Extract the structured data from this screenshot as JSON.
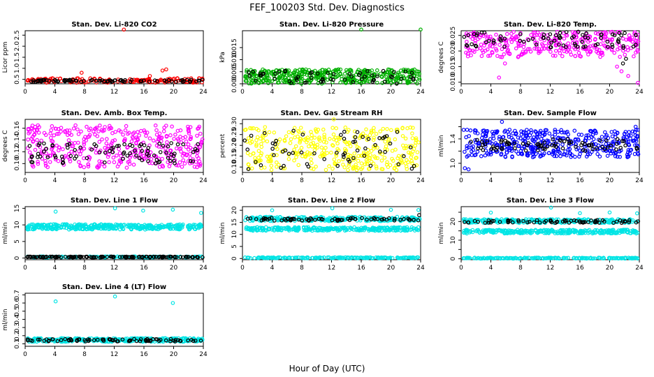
{
  "figure": {
    "title": "FEF_100203  Std. Dev. Diagnostics",
    "xlabel": "Hour of Day (UTC)"
  },
  "chart_data": [
    {
      "type": "scatter",
      "title": "Stan. Dev. Li-820 CO2",
      "ylabel": "Licor ppm",
      "xlim": [
        0,
        24
      ],
      "xticks": [
        0,
        4,
        8,
        12,
        16,
        20,
        24
      ],
      "ylim": [
        0.3,
        2.7
      ],
      "yticks": [
        0.5,
        1.0,
        1.5,
        2.0,
        2.5
      ],
      "ytick_labels": [
        "0.5",
        "1.0",
        "1.5",
        "2.0",
        "2.5"
      ],
      "series": [
        {
          "color": "#ff0000",
          "band": [
            0.35,
            0.55
          ],
          "n": 150,
          "outliers": [
            [
              13.3,
              2.75
            ],
            [
              7.6,
              0.8
            ],
            [
              16.8,
              0.65
            ],
            [
              19.0,
              0.95
            ],
            [
              18.5,
              0.9
            ],
            [
              20.5,
              0.55
            ]
          ]
        },
        {
          "color": "#000000",
          "band": [
            0.38,
            0.48
          ],
          "n": 90,
          "outliers": []
        }
      ]
    },
    {
      "type": "scatter",
      "title": "Stan. Dev. Li-820 Pressure",
      "ylabel": "kPa",
      "xlim": [
        0,
        24
      ],
      "xticks": [
        0,
        4,
        8,
        12,
        16,
        20,
        24
      ],
      "ylim": [
        0,
        0.022
      ],
      "yticks": [
        0,
        0.005,
        0.01,
        0.015
      ],
      "ytick_labels": [
        "0.000",
        "0.005",
        "0.010",
        "0.015"
      ],
      "series": [
        {
          "color": "#00b000",
          "band": [
            0.0,
            0.006
          ],
          "n": 420,
          "outliers": [
            [
              16.0,
              0.0225
            ],
            [
              24.0,
              0.0225
            ]
          ]
        },
        {
          "color": "#000000",
          "band": [
            0.0,
            0.0055
          ],
          "n": 60,
          "outliers": []
        }
      ]
    },
    {
      "type": "scatter",
      "title": "Stan. Dev. Li-820 Temp.",
      "ylabel": "degrees C",
      "xlim": [
        0,
        24
      ],
      "xticks": [
        0,
        4,
        8,
        12,
        16,
        20,
        24
      ],
      "ylim": [
        0.0095,
        0.0265
      ],
      "yticks": [
        0.01,
        0.015,
        0.02,
        0.025
      ],
      "ytick_labels": [
        "0.010",
        "0.015",
        "0.020",
        "0.025"
      ],
      "series": [
        {
          "color": "#ff00ff",
          "band": [
            0.018,
            0.0262
          ],
          "n": 320,
          "outliers": [
            [
              5.1,
              0.0115
            ],
            [
              23.8,
              0.0098
            ],
            [
              22.5,
              0.012
            ],
            [
              21.6,
              0.0135
            ],
            [
              5.9,
              0.016
            ],
            [
              21.0,
              0.015
            ]
          ]
        },
        {
          "color": "#000000",
          "band": [
            0.021,
            0.0262
          ],
          "n": 80,
          "outliers": [
            [
              22.2,
              0.0175
            ],
            [
              21.8,
              0.016
            ],
            [
              23.5,
              0.022
            ]
          ]
        }
      ]
    },
    {
      "type": "scatter",
      "title": "Stan. Dev. Amb. Box Temp.",
      "ylabel": "degrees C",
      "xlim": [
        0,
        24
      ],
      "xticks": [
        0,
        4,
        8,
        12,
        16,
        20,
        24
      ],
      "ylim": [
        0.085,
        0.175
      ],
      "yticks": [
        0.1,
        0.12,
        0.14,
        0.16
      ],
      "ytick_labels": [
        "0.10",
        "0.12",
        "0.14",
        "0.16"
      ],
      "series": [
        {
          "color": "#ff00ff",
          "band": [
            0.093,
            0.165
          ],
          "n": 380,
          "outliers": []
        },
        {
          "color": "#000000",
          "band": [
            0.1,
            0.135
          ],
          "n": 90,
          "outliers": []
        }
      ]
    },
    {
      "type": "scatter",
      "title": "Stan. Dev. Gas Stream RH",
      "ylabel": "percent",
      "xlim": [
        0,
        24
      ],
      "xticks": [
        0,
        4,
        8,
        12,
        16,
        20,
        24
      ],
      "ylim": [
        0.075,
        0.32
      ],
      "yticks": [
        0.1,
        0.15,
        0.2,
        0.25,
        0.3
      ],
      "ytick_labels": [
        "0.10",
        "0.15",
        "0.20",
        "0.25",
        "0.30"
      ],
      "series": [
        {
          "color": "#ffff00",
          "band": [
            0.085,
            0.285
          ],
          "n": 360,
          "outliers": [
            [
              12.3,
              0.32
            ]
          ]
        },
        {
          "color": "#000000",
          "band": [
            0.09,
            0.27
          ],
          "n": 60,
          "outliers": []
        }
      ]
    },
    {
      "type": "scatter",
      "title": "Stan. Dev. Sample Flow",
      "ylabel": "ml/min",
      "xlim": [
        0,
        24
      ],
      "xticks": [
        0,
        4,
        8,
        12,
        16,
        20,
        24
      ],
      "ylim": [
        0.85,
        1.72
      ],
      "yticks": [
        1.0,
        1.2,
        1.4,
        1.6
      ],
      "ytick_labels": [
        "1.0",
        "",
        "1.4",
        ""
      ],
      "series": [
        {
          "color": "#0000ff",
          "band": [
            1.1,
            1.55
          ],
          "n": 420,
          "outliers": [
            [
              0.5,
              0.92
            ],
            [
              1.0,
              0.9
            ],
            [
              5.5,
              1.68
            ],
            [
              23.5,
              1.6
            ]
          ]
        },
        {
          "color": "#000000",
          "band": [
            1.2,
            1.4
          ],
          "n": 80,
          "outliers": []
        }
      ]
    },
    {
      "type": "scatter",
      "title": "Stan. Dev. Line 1 Flow",
      "ylabel": "ml/min",
      "xlim": [
        0,
        24
      ],
      "xticks": [
        0,
        4,
        8,
        12,
        16,
        20,
        24
      ],
      "ylim": [
        -0.5,
        15.5
      ],
      "yticks": [
        0,
        5,
        10,
        15
      ],
      "ytick_labels": [
        "0",
        "5",
        "10",
        "15"
      ],
      "series": [
        {
          "color": "#00e5e5",
          "band": [
            8.6,
            10.2
          ],
          "n": 380,
          "outliers": [
            [
              4.1,
              14.0
            ],
            [
              12.1,
              15.0
            ],
            [
              19.9,
              14.6
            ],
            [
              23.7,
              13.6
            ],
            [
              15.9,
              14.3
            ]
          ]
        },
        {
          "color": "#00e5e5",
          "band": [
            0.15,
            0.5
          ],
          "n": 150,
          "outliers": []
        },
        {
          "color": "#000000",
          "band": [
            0.2,
            0.45
          ],
          "n": 140,
          "outliers": []
        }
      ]
    },
    {
      "type": "scatter",
      "title": "Stan. Dev. Line 2 Flow",
      "ylabel": "ml/min",
      "xlim": [
        0,
        24
      ],
      "xticks": [
        0,
        4,
        8,
        12,
        16,
        20,
        24
      ],
      "ylim": [
        -0.5,
        21.5
      ],
      "yticks": [
        0,
        5,
        10,
        15,
        20
      ],
      "ytick_labels": [
        "0",
        "5",
        "10",
        "15",
        "20"
      ],
      "series": [
        {
          "color": "#00e5e5",
          "band": [
            11.5,
            13.0
          ],
          "n": 280,
          "outliers": []
        },
        {
          "color": "#00e5e5",
          "band": [
            15.5,
            17.3
          ],
          "n": 260,
          "outliers": [
            [
              4.0,
              20.0
            ],
            [
              12.1,
              20.8
            ],
            [
              20.0,
              20.2
            ],
            [
              23.7,
              20.1
            ]
          ]
        },
        {
          "color": "#00e5e5",
          "band": [
            0.1,
            0.5
          ],
          "n": 180,
          "outliers": []
        },
        {
          "color": "#000000",
          "band": [
            15.6,
            16.9
          ],
          "n": 70,
          "outliers": [
            [
              23.8,
              18.0
            ]
          ]
        }
      ]
    },
    {
      "type": "scatter",
      "title": "Stan. Dev. Line 3 Flow",
      "ylabel": "ml/min",
      "xlim": [
        0,
        24
      ],
      "xticks": [
        0,
        4,
        8,
        12,
        16,
        20,
        24
      ],
      "ylim": [
        -0.5,
        28
      ],
      "yticks": [
        0,
        5,
        10,
        15,
        20,
        25
      ],
      "ytick_labels": [
        "0",
        "",
        "10",
        "",
        "20",
        ""
      ],
      "series": [
        {
          "color": "#00e5e5",
          "band": [
            13.6,
            15.6
          ],
          "n": 280,
          "outliers": []
        },
        {
          "color": "#00e5e5",
          "band": [
            19.2,
            21.3
          ],
          "n": 240,
          "outliers": [
            [
              4.0,
              24.8
            ],
            [
              12.1,
              27.5
            ],
            [
              16.0,
              24.5
            ],
            [
              20.0,
              24.9
            ],
            [
              23.7,
              24.4
            ]
          ]
        },
        {
          "color": "#00e5e5",
          "band": [
            0.1,
            0.6
          ],
          "n": 180,
          "outliers": []
        },
        {
          "color": "#000000",
          "band": [
            19.2,
            20.8
          ],
          "n": 70,
          "outliers": []
        }
      ]
    },
    {
      "type": "scatter",
      "title": "Stan. Dev. Line 4 (LT) Flow",
      "ylabel": "ml/min",
      "xlim": [
        0,
        24
      ],
      "xticks": [
        0,
        4,
        8,
        12,
        16,
        20,
        24
      ],
      "ylim": [
        0.07,
        0.72
      ],
      "yticks": [
        0.1,
        0.2,
        0.3,
        0.4,
        0.5,
        0.6,
        0.7
      ],
      "ytick_labels": [
        "0.1",
        "0.2",
        "0.3",
        "0.4",
        "0.5",
        "0.6",
        "0.7"
      ],
      "series": [
        {
          "color": "#00e5e5",
          "band": [
            0.125,
            0.17
          ],
          "n": 320,
          "outliers": [
            [
              4.1,
              0.62
            ],
            [
              12.1,
              0.68
            ],
            [
              19.9,
              0.6
            ]
          ]
        },
        {
          "color": "#000000",
          "band": [
            0.13,
            0.16
          ],
          "n": 80,
          "outliers": []
        }
      ]
    }
  ]
}
